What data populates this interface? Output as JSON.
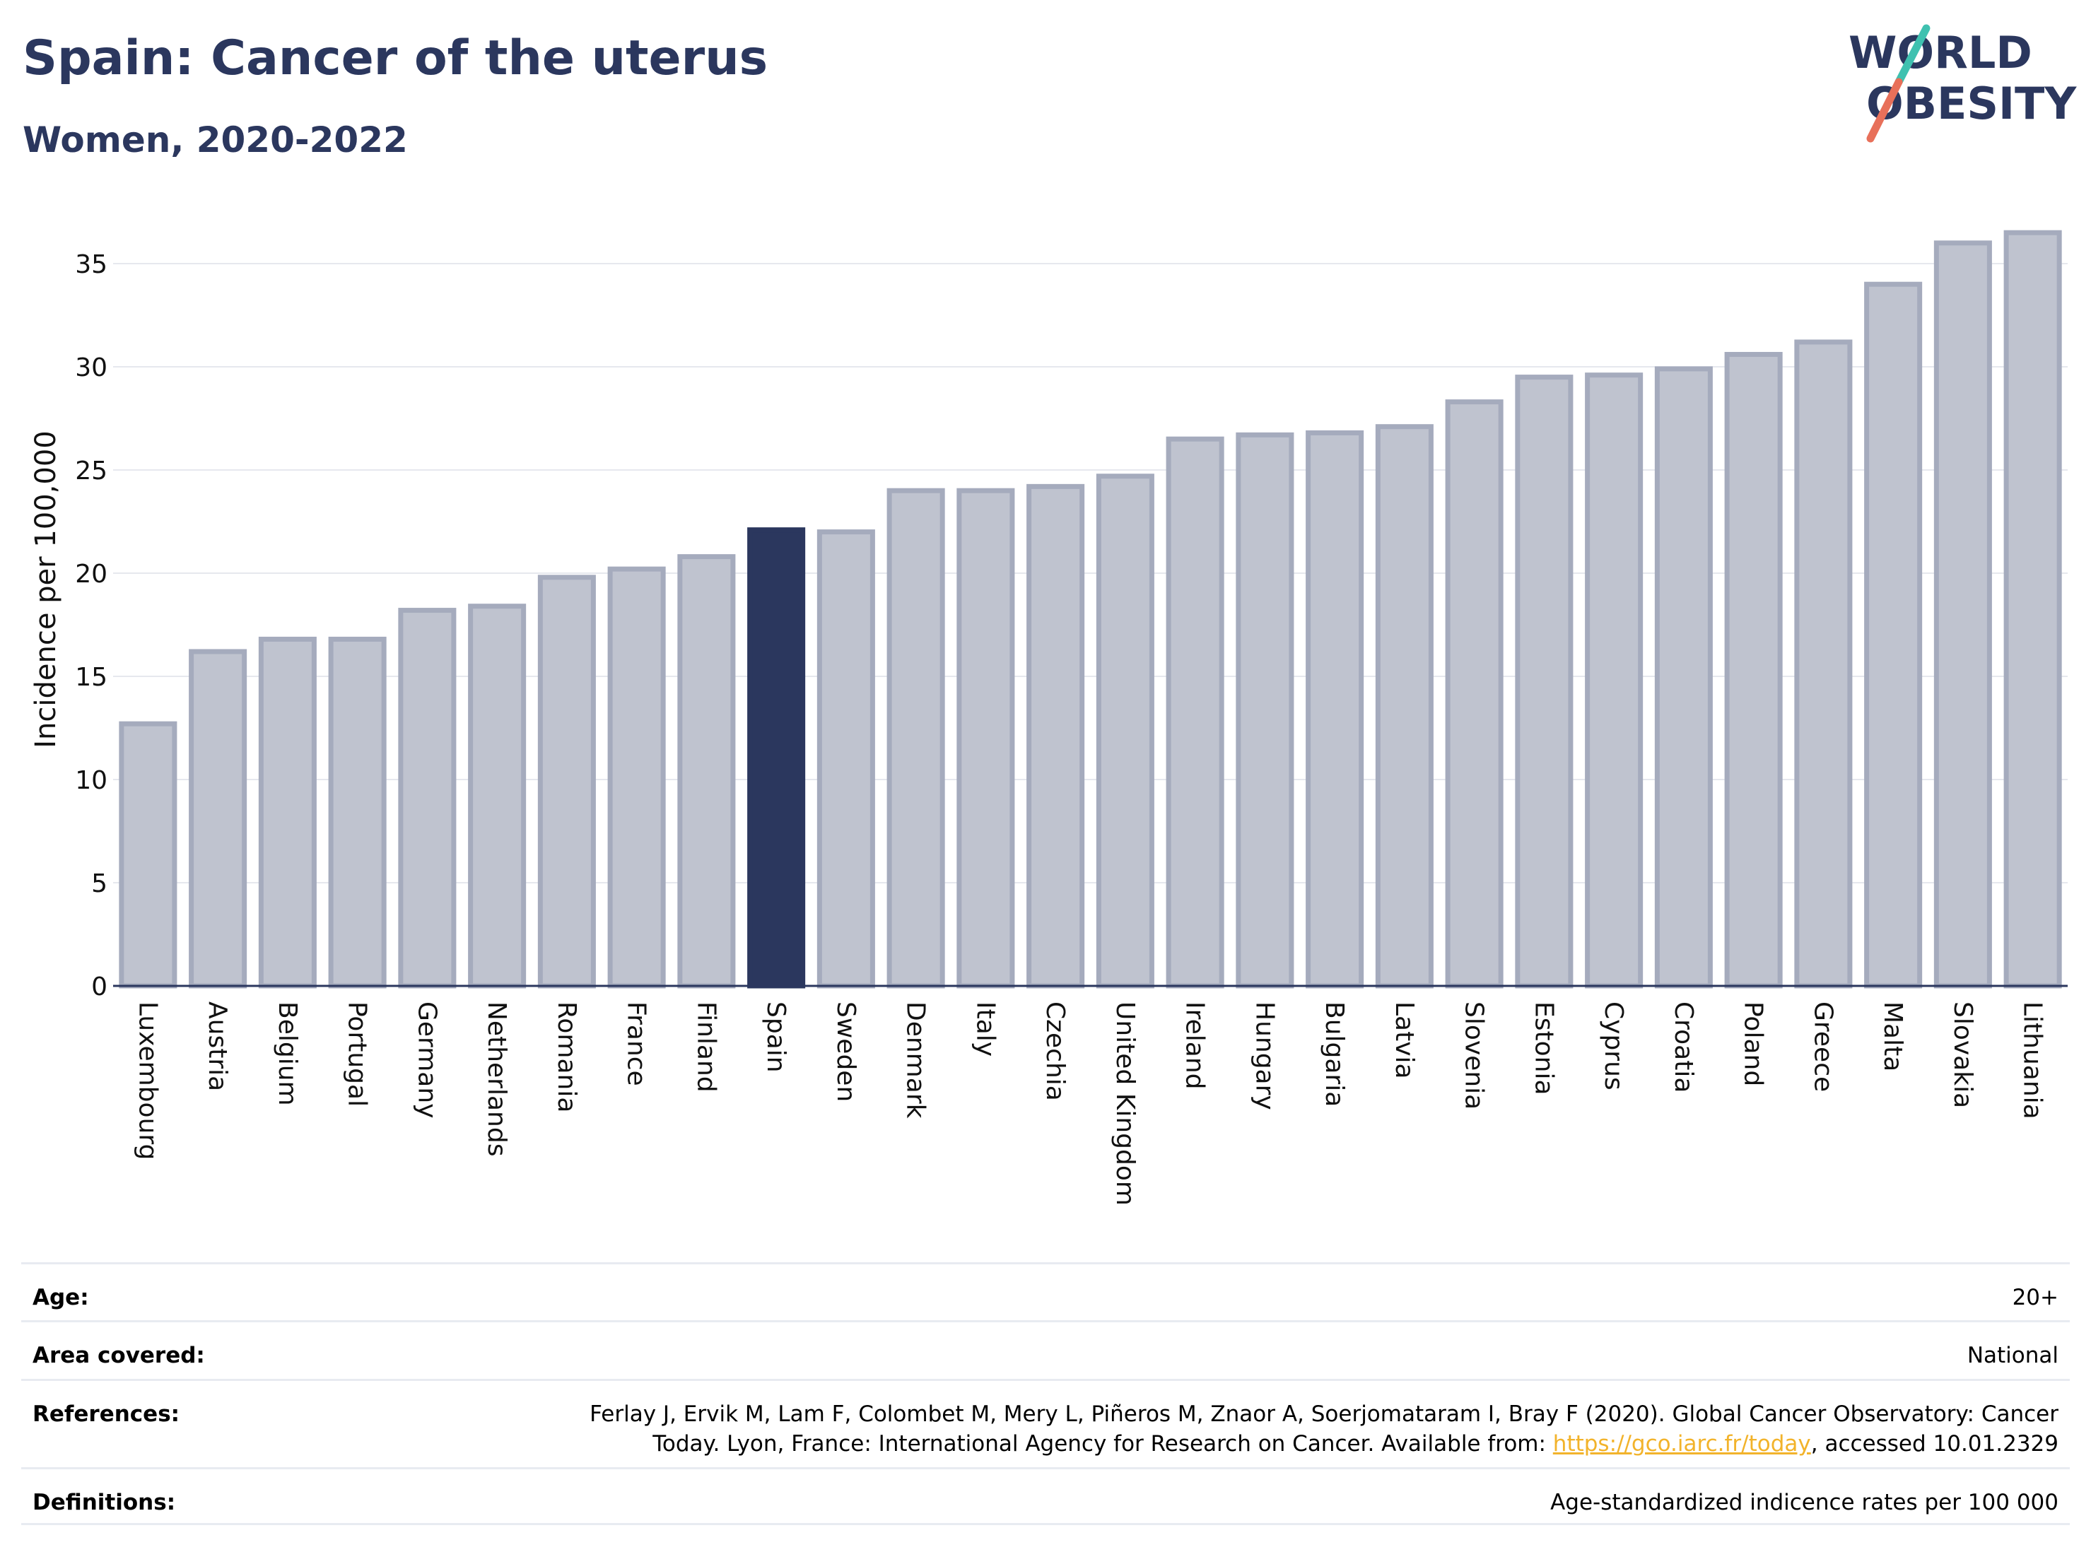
{
  "header": {
    "title": "Spain: Cancer of the uterus",
    "subtitle": "Women, 2020-2022"
  },
  "logo": {
    "line1": "WORLD",
    "line2": "OBESITY",
    "accent_teal": "#3fc1b0",
    "accent_coral": "#e8705a",
    "text_color": "#2b375e"
  },
  "colors": {
    "highlight": "#2b375e",
    "bar_fill": "#bfc3cf",
    "bar_stroke": "#a5abbd",
    "axis": "#2b375e",
    "grid": "#e6e8ee"
  },
  "chart_data": {
    "type": "bar",
    "ylabel": "Incidence per 100,000",
    "ylim": [
      0,
      37
    ],
    "yticks": [
      0,
      5,
      10,
      15,
      20,
      25,
      30,
      35
    ],
    "highlight": "Spain",
    "grid": true,
    "categories": [
      "Luxembourg",
      "Austria",
      "Belgium",
      "Portugal",
      "Germany",
      "Netherlands",
      "Romania",
      "France",
      "Finland",
      "Spain",
      "Sweden",
      "Denmark",
      "Italy",
      "Czechia",
      "United Kingdom",
      "Ireland",
      "Hungary",
      "Bulgaria",
      "Latvia",
      "Slovenia",
      "Estonia",
      "Cyprus",
      "Croatia",
      "Poland",
      "Greece",
      "Malta",
      "Slovakia",
      "Lithuania"
    ],
    "values": [
      12.7,
      16.2,
      16.8,
      16.8,
      18.2,
      18.4,
      19.8,
      20.2,
      20.8,
      22.1,
      22.0,
      24.0,
      24.0,
      24.2,
      24.7,
      26.5,
      26.7,
      26.8,
      27.1,
      28.3,
      29.5,
      29.6,
      29.9,
      30.6,
      31.2,
      34.0,
      36.0,
      36.5
    ]
  },
  "info": {
    "age_label": "Age:",
    "age_value": "20+",
    "area_label": "Area covered:",
    "area_value": "National",
    "references_label": "References:",
    "references_line1": "Ferlay J, Ervik M, Lam F, Colombet M, Mery L, Piñeros M, Znaor A, Soerjomataram I, Bray F (2020). Global Cancer Observatory: Cancer",
    "references_line2_pre": "Today. Lyon, France: International Agency for Research on Cancer. Available from: ",
    "references_link": "https://gco.iarc.fr/today",
    "references_line2_post": ", accessed 10.01.2329",
    "definitions_label": "Definitions:",
    "definitions_value": "Age-standardized indicence rates per 100 000"
  }
}
